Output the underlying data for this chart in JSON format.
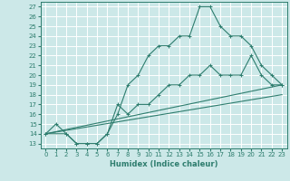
{
  "xlabel": "Humidex (Indice chaleur)",
  "xlim": [
    -0.5,
    23.5
  ],
  "ylim": [
    12.5,
    27.5
  ],
  "xticks": [
    0,
    1,
    2,
    3,
    4,
    5,
    6,
    7,
    8,
    9,
    10,
    11,
    12,
    13,
    14,
    15,
    16,
    17,
    18,
    19,
    20,
    21,
    22,
    23
  ],
  "yticks": [
    13,
    14,
    15,
    16,
    17,
    18,
    19,
    20,
    21,
    22,
    23,
    24,
    25,
    26,
    27
  ],
  "bg_color": "#cce8e8",
  "grid_color": "#ffffff",
  "line_color": "#2e7d6e",
  "lines": [
    {
      "x": [
        0,
        23
      ],
      "y": [
        14,
        19
      ],
      "markers": false
    },
    {
      "x": [
        0,
        23
      ],
      "y": [
        14,
        18
      ],
      "markers": false
    },
    {
      "x": [
        0,
        1,
        2,
        3,
        4,
        5,
        6,
        7,
        8,
        9,
        10,
        11,
        12,
        13,
        14,
        15,
        16,
        17,
        18,
        19,
        20,
        21,
        22,
        23
      ],
      "y": [
        14,
        15,
        14,
        13,
        13,
        13,
        14,
        17,
        16,
        17,
        17,
        18,
        19,
        19,
        20,
        20,
        21,
        20,
        20,
        20,
        22,
        20,
        19,
        19
      ],
      "markers": true
    },
    {
      "x": [
        0,
        2,
        3,
        4,
        5,
        6,
        7,
        8,
        9,
        10,
        11,
        12,
        13,
        14,
        15,
        16,
        17,
        18,
        19,
        20,
        21,
        22,
        23
      ],
      "y": [
        14,
        14,
        13,
        13,
        13,
        14,
        16,
        19,
        20,
        22,
        23,
        23,
        24,
        24,
        27,
        27,
        25,
        24,
        24,
        23,
        21,
        20,
        19
      ],
      "markers": true
    }
  ]
}
